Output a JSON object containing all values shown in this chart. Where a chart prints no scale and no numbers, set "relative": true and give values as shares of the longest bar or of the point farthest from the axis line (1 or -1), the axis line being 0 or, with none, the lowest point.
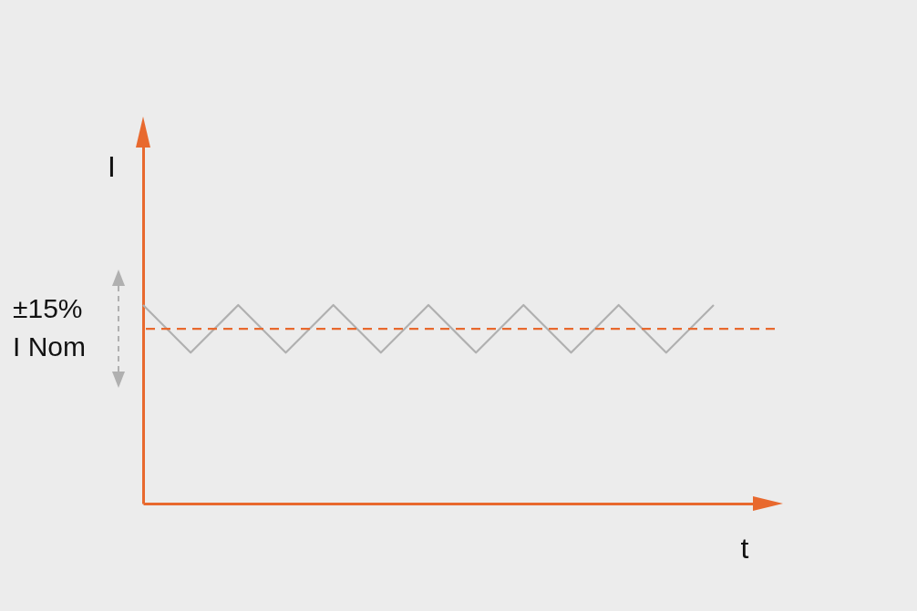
{
  "chart_data": {
    "type": "line",
    "relative": true,
    "xlabel": "t",
    "ylabel": "I",
    "categories": [
      null,
      null,
      null,
      null,
      null,
      null,
      null,
      null,
      null,
      null,
      null,
      null,
      null
    ],
    "series": [
      {
        "color": "#b0b0b0",
        "values": [
          1,
          0.76,
          1,
          0.76,
          1,
          0.76,
          1,
          0.76,
          1,
          0.76,
          1,
          0.76,
          1
        ]
      }
    ],
    "ref_lines": [
      {
        "axis": "y",
        "value": 0.88,
        "color": "#e8692e",
        "line_style": "dashed"
      }
    ],
    "annotations": [
      "±15%",
      "I Nom"
    ],
    "grid": false,
    "marker": "none"
  }
}
